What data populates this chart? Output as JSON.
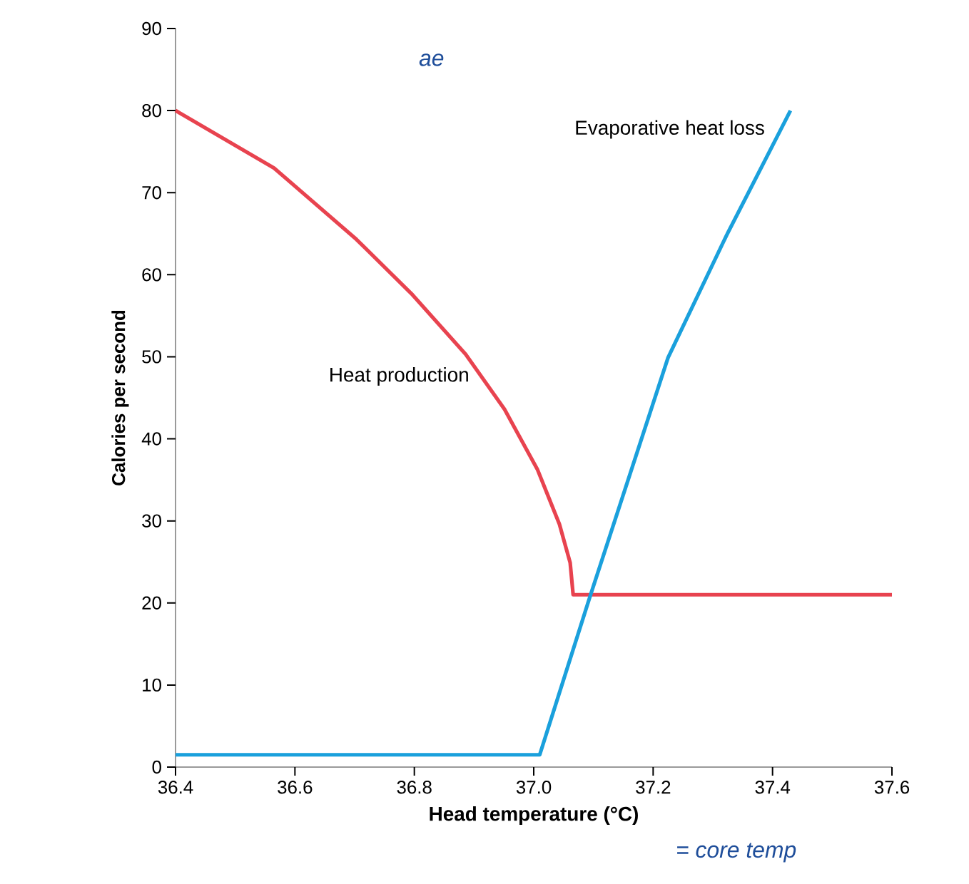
{
  "chart_data": {
    "type": "line",
    "xlabel": "Head temperature (°C)",
    "ylabel": "Calories per second",
    "xlim": [
      36.4,
      37.6
    ],
    "xticks": [
      {
        "value": 36.4,
        "label": "36.4"
      },
      {
        "value": 36.6,
        "label": "36.6"
      },
      {
        "value": 36.8,
        "label": "36.8"
      },
      {
        "value": 37.0,
        "label": "37.0"
      },
      {
        "value": 37.2,
        "label": "37.2"
      },
      {
        "value": 37.4,
        "label": "37.4"
      },
      {
        "value": 37.6,
        "label": "37.6"
      }
    ],
    "ylim": [
      0,
      90
    ],
    "yticks": [
      0,
      10,
      20,
      30,
      40,
      50,
      60,
      70,
      80,
      90
    ],
    "series": [
      {
        "name": "Heat production",
        "color": "#e8434f",
        "x": [
          36.4,
          36.565,
          36.703,
          36.795,
          36.886,
          36.951,
          37.006,
          37.043,
          37.061,
          37.066,
          37.6
        ],
        "values": [
          80,
          73,
          64.3,
          57.7,
          50.3,
          43.6,
          36.3,
          29.6,
          24.9,
          21,
          21
        ]
      },
      {
        "name": "Evaporative heat loss",
        "color": "#1aa0dc",
        "x": [
          36.4,
          37.01,
          37.093,
          37.225,
          37.323,
          37.43
        ],
        "values": [
          1.5,
          1.5,
          20.5,
          49.9,
          64.8,
          80
        ]
      }
    ],
    "annotations": [
      "ae",
      "= core temp"
    ],
    "grid": false,
    "marker": "none",
    "line_style": "solid"
  }
}
